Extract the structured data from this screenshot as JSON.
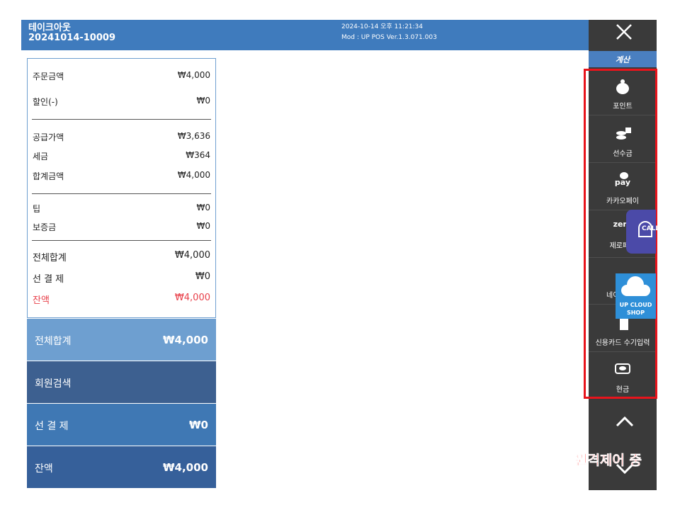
{
  "header": {
    "order_type": "테이크아웃",
    "order_no": "20241014-10009",
    "datetime": "2024-10-14 오후 11:21:34",
    "version": "Mod : UP POS Ver.1.3.071.003"
  },
  "summary": {
    "rows": [
      {
        "label": "주문금액",
        "value": "₩4,000"
      },
      {
        "label": "할인(-)",
        "value": "₩0"
      },
      {
        "label": "공급가액",
        "value": "₩3,636"
      },
      {
        "label": "세금",
        "value": "₩364"
      },
      {
        "label": "합계금액",
        "value": "₩4,000"
      },
      {
        "label": "팁",
        "value": "₩0"
      },
      {
        "label": "보증금",
        "value": "₩0"
      },
      {
        "label": "전체합계",
        "value": "₩4,000"
      },
      {
        "label": "선 결 제",
        "value": "₩0"
      },
      {
        "label": "잔액",
        "value": "₩4,000"
      }
    ]
  },
  "buttons": [
    {
      "label": "전체합계",
      "value": "₩4,000"
    },
    {
      "label": "회원검색"
    },
    {
      "label": "선 결 제",
      "value": "₩0"
    },
    {
      "label": "잔액",
      "value": "₩4,000"
    }
  ],
  "sidebar": {
    "section": "계산",
    "items": [
      {
        "label": "포인트"
      },
      {
        "label": "선수금"
      },
      {
        "label": "카카오페이",
        "icon_text": "pay"
      },
      {
        "label": "제로페이",
        "icon_text": "zero"
      },
      {
        "label": "네이버페이"
      },
      {
        "label": "신용카드 수기입력"
      },
      {
        "label": "현금"
      }
    ]
  },
  "overlays": {
    "call": "CALL",
    "cloud_1": "UP CLOUD",
    "cloud_2": "SHOP",
    "remote": "원격제어 중"
  }
}
